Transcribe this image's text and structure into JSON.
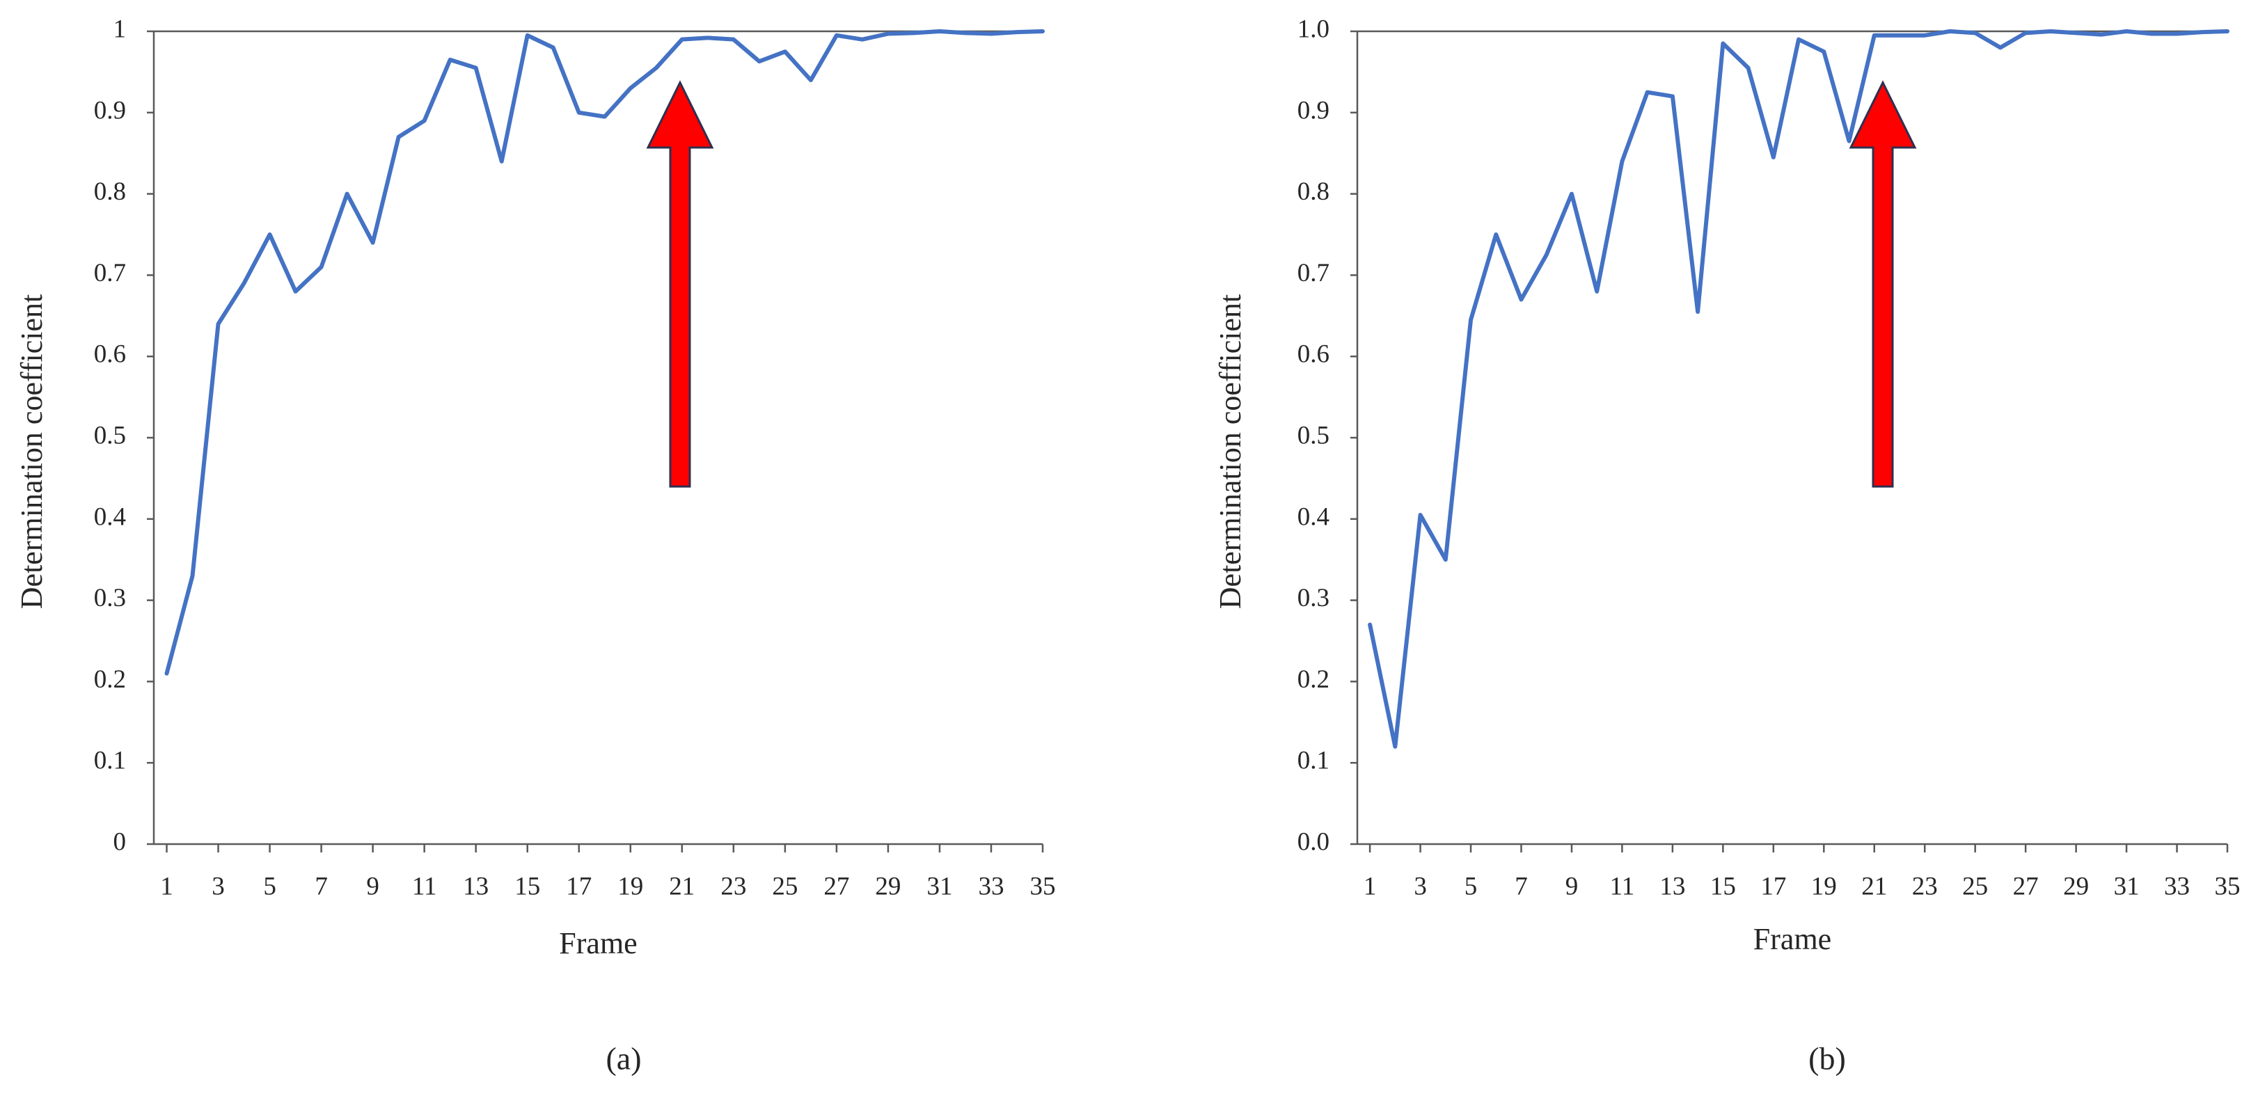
{
  "chart_data": [
    {
      "type": "line",
      "caption": "(a)",
      "xlabel": "Frame",
      "ylabel": "Determination coefficient",
      "color": "#4472c4",
      "x": [
        1,
        2,
        3,
        4,
        5,
        6,
        7,
        8,
        9,
        10,
        11,
        12,
        13,
        14,
        15,
        16,
        17,
        18,
        19,
        20,
        21,
        22,
        23,
        24,
        25,
        26,
        27,
        28,
        29,
        30,
        31,
        32,
        33,
        34,
        35
      ],
      "values": [
        0.21,
        0.33,
        0.64,
        0.69,
        0.75,
        0.68,
        0.71,
        0.8,
        0.74,
        0.87,
        0.89,
        0.965,
        0.955,
        0.84,
        0.995,
        0.98,
        0.9,
        0.895,
        0.93,
        0.955,
        0.99,
        0.992,
        0.99,
        0.963,
        0.975,
        0.94,
        0.995,
        0.99,
        0.997,
        0.998,
        1.0,
        0.998,
        0.997,
        0.999,
        1.0
      ],
      "xlim": [
        0.5,
        35
      ],
      "xticks": [
        1,
        3,
        5,
        7,
        9,
        11,
        13,
        15,
        17,
        19,
        21,
        23,
        25,
        27,
        29,
        31,
        33,
        35
      ],
      "ylim": [
        0,
        1
      ],
      "yticks": [
        0,
        0.1,
        0.2,
        0.3,
        0.4,
        0.5,
        0.6,
        0.7,
        0.8,
        0.9,
        1
      ]
    },
    {
      "type": "line",
      "caption": "(b)",
      "xlabel": "Frame",
      "ylabel": "Determination coefficient",
      "color": "#4472c4",
      "x": [
        1,
        2,
        3,
        4,
        5,
        6,
        7,
        8,
        9,
        10,
        11,
        12,
        13,
        14,
        15,
        16,
        17,
        18,
        19,
        20,
        21,
        22,
        23,
        24,
        25,
        26,
        27,
        28,
        29,
        30,
        31,
        32,
        33,
        34,
        35
      ],
      "values": [
        0.27,
        0.12,
        0.405,
        0.35,
        0.645,
        0.75,
        0.67,
        0.725,
        0.8,
        0.68,
        0.84,
        0.925,
        0.92,
        0.655,
        0.985,
        0.955,
        0.845,
        0.99,
        0.975,
        0.865,
        0.995,
        0.995,
        0.995,
        1.0,
        0.998,
        0.98,
        0.998,
        1.0,
        0.998,
        0.996,
        1.0,
        0.997,
        0.997,
        0.999,
        1.0
      ],
      "xlim": [
        0.5,
        35
      ],
      "xticks": [
        1,
        3,
        5,
        7,
        9,
        11,
        13,
        15,
        17,
        19,
        21,
        23,
        25,
        27,
        29,
        31,
        33,
        35
      ],
      "ylim": [
        0,
        1
      ],
      "yticks": [
        {
          "value": 0,
          "label": "0.0"
        },
        0.1,
        0.2,
        0.3,
        0.4,
        0.5,
        0.6,
        0.7,
        0.8,
        0.9,
        {
          "value": 1,
          "label": "1.0"
        }
      ]
    }
  ]
}
